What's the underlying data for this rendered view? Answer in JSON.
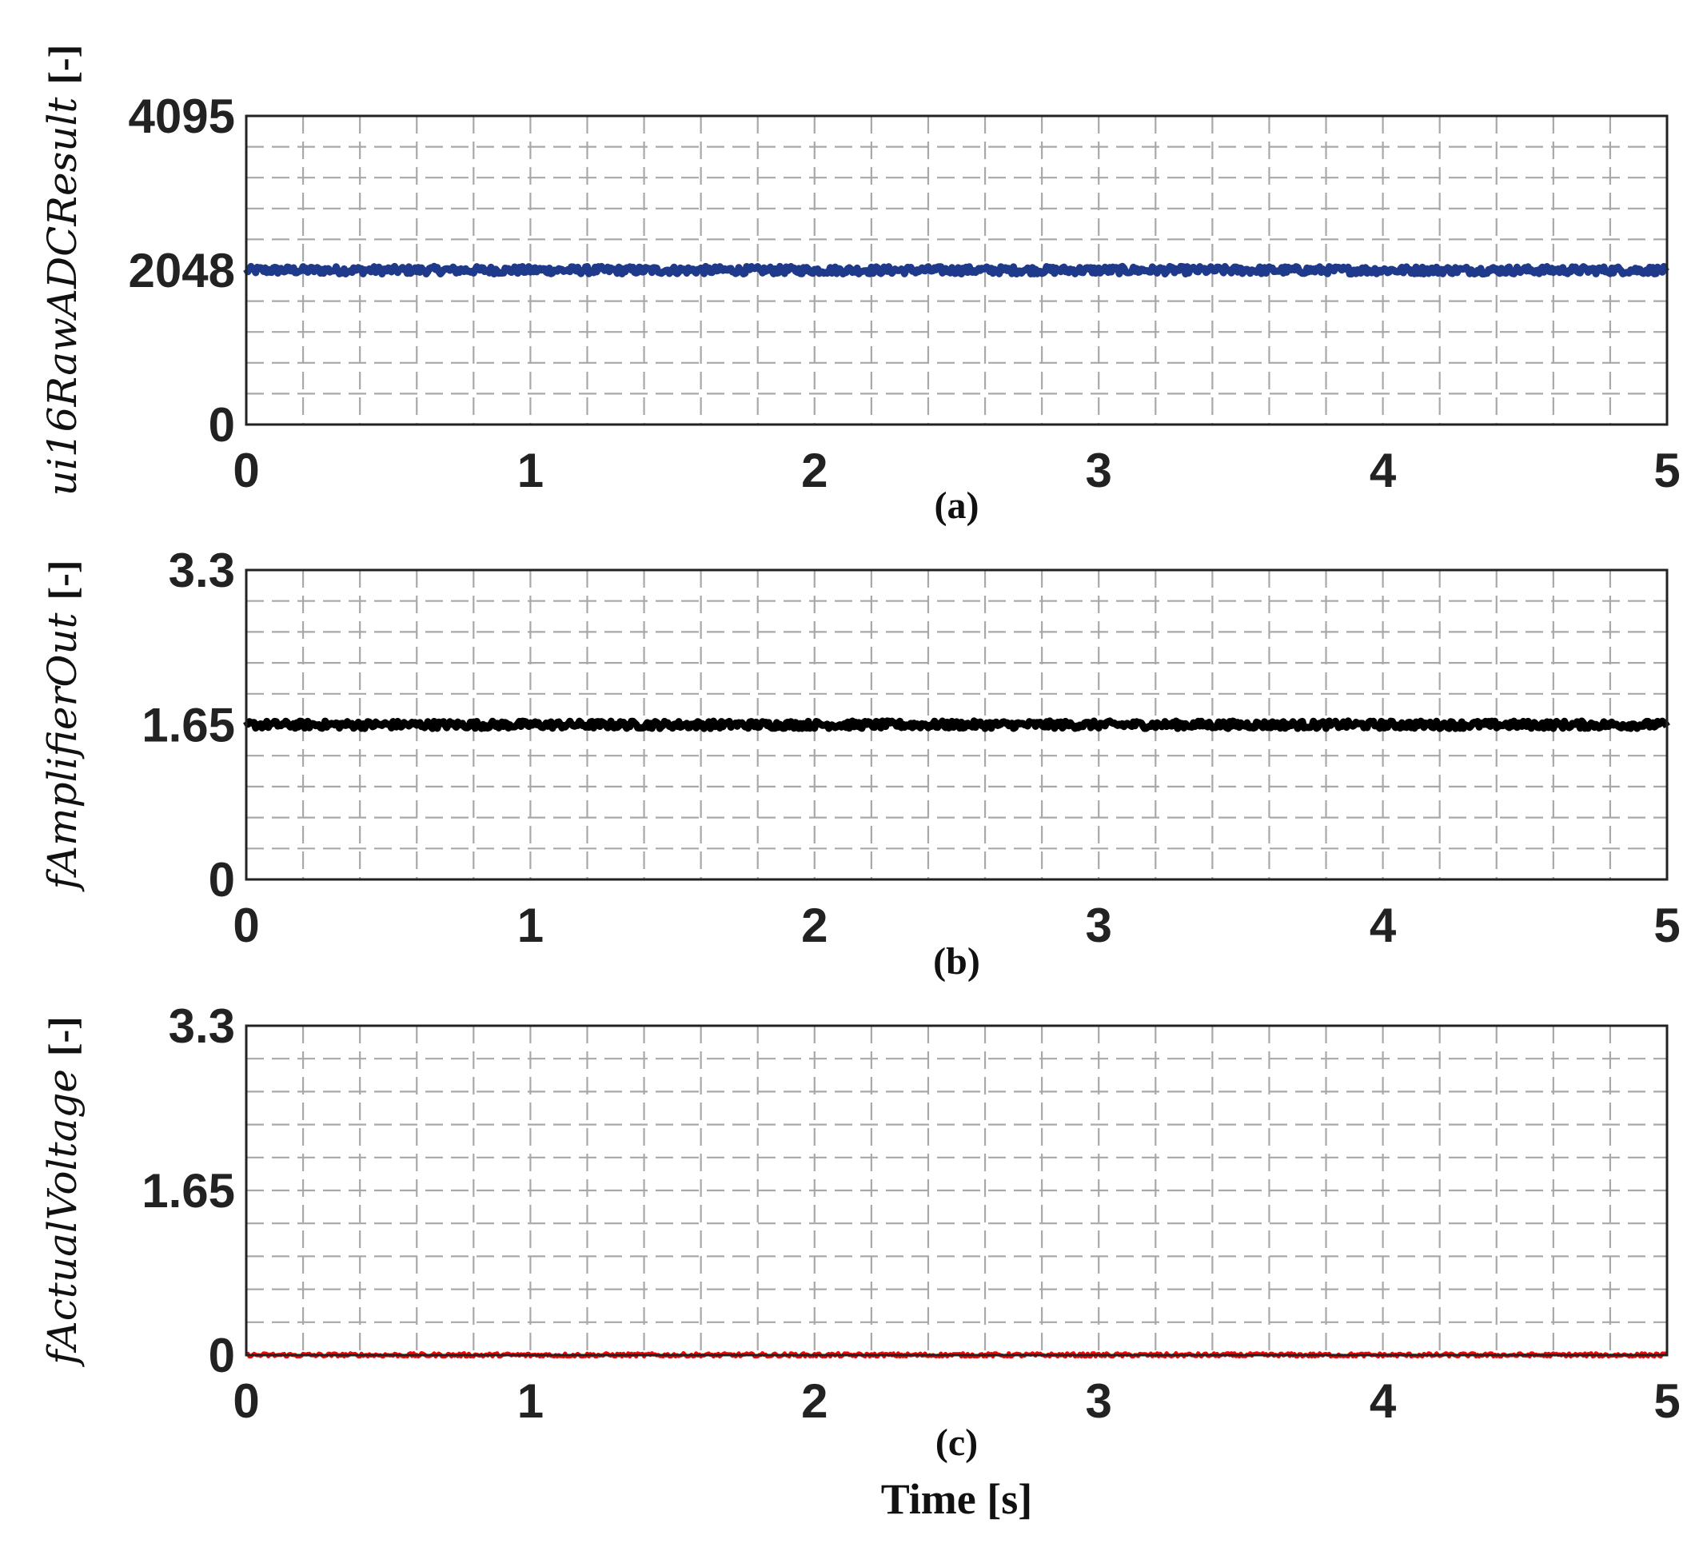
{
  "figure": {
    "xlabel": "Time [s]"
  },
  "chart_data": [
    {
      "type": "line",
      "panel": "(a)",
      "caption": "(a)",
      "ylabel": "ui16RawADCResult",
      "yunit": "[-]",
      "xlim": [
        0,
        5
      ],
      "ylim": [
        0,
        4095
      ],
      "xticks": [
        0,
        1,
        2,
        3,
        4,
        5
      ],
      "xtick_labels": [
        "0",
        "1",
        "2",
        "3",
        "4",
        "5"
      ],
      "yticks": [
        0,
        2048,
        4095
      ],
      "ytick_labels": [
        "0",
        "2048",
        "4095"
      ],
      "grid": true,
      "series": [
        {
          "color": "#1f3a8a",
          "x": [
            0,
            5
          ],
          "y": [
            2048,
            2048
          ],
          "noise": 0.012
        }
      ]
    },
    {
      "type": "line",
      "panel": "(b)",
      "caption": "(b)",
      "ylabel": "fAmplifierOut",
      "yunit": "[-]",
      "xlim": [
        0,
        5
      ],
      "ylim": [
        0,
        3.3
      ],
      "xticks": [
        0,
        1,
        2,
        3,
        4,
        5
      ],
      "xtick_labels": [
        "0",
        "1",
        "2",
        "3",
        "4",
        "5"
      ],
      "yticks": [
        0,
        1.65,
        3.3
      ],
      "ytick_labels": [
        "0",
        "1.65",
        "3.3"
      ],
      "grid": true,
      "series": [
        {
          "color": "#000000",
          "x": [
            0,
            5
          ],
          "y": [
            1.65,
            1.65
          ],
          "noise": 0.012
        }
      ]
    },
    {
      "type": "line",
      "panel": "(c)",
      "caption": "(c)",
      "ylabel": "fActualVoltage",
      "yunit": "[-]",
      "xlim": [
        0,
        5
      ],
      "ylim": [
        0,
        3.3
      ],
      "xticks": [
        0,
        1,
        2,
        3,
        4,
        5
      ],
      "xtick_labels": [
        "0",
        "1",
        "2",
        "3",
        "4",
        "5"
      ],
      "yticks": [
        0,
        1.65,
        3.3
      ],
      "ytick_labels": [
        "0",
        "1.65",
        "3.3"
      ],
      "grid": true,
      "series": [
        {
          "color": "#ff0000",
          "x": [
            0,
            5
          ],
          "y": [
            0,
            0
          ],
          "noise": 0.006
        }
      ]
    }
  ]
}
